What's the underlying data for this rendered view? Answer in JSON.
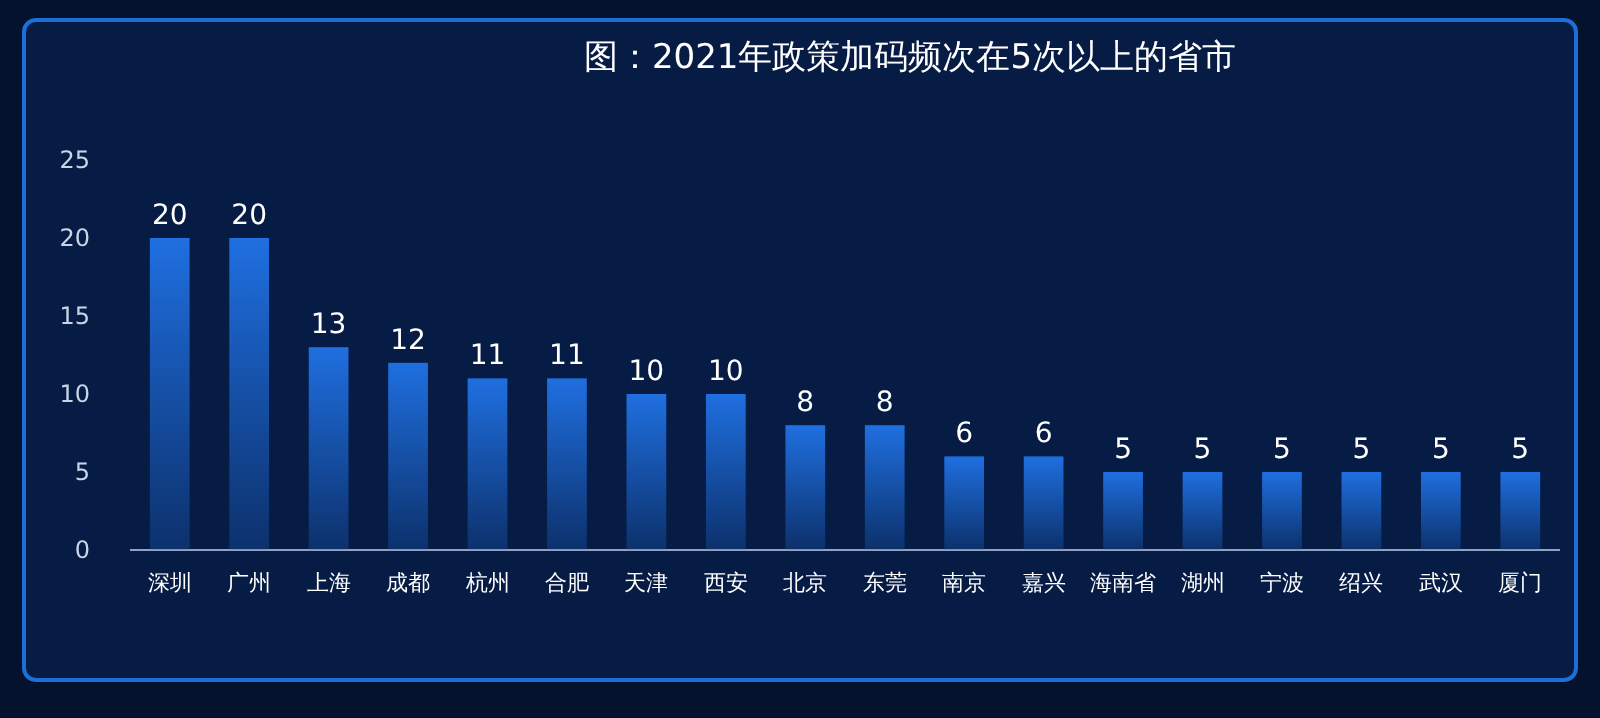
{
  "chart_data": {
    "type": "bar",
    "title": "图：2021年政策加码频次在5次以上的省市",
    "categories": [
      "深圳",
      "广州",
      "上海",
      "成都",
      "杭州",
      "合肥",
      "天津",
      "西安",
      "北京",
      "东莞",
      "南京",
      "嘉兴",
      "海南省",
      "湖州",
      "宁波",
      "绍兴",
      "武汉",
      "厦门"
    ],
    "values": [
      20,
      20,
      13,
      12,
      11,
      11,
      10,
      10,
      8,
      8,
      6,
      6,
      5,
      5,
      5,
      5,
      5,
      5
    ],
    "color": "#1f6fe0",
    "ylim": [
      0,
      25
    ],
    "yticks": [
      0,
      5,
      10,
      15,
      20,
      25
    ],
    "data_labels": true,
    "grid": false
  }
}
